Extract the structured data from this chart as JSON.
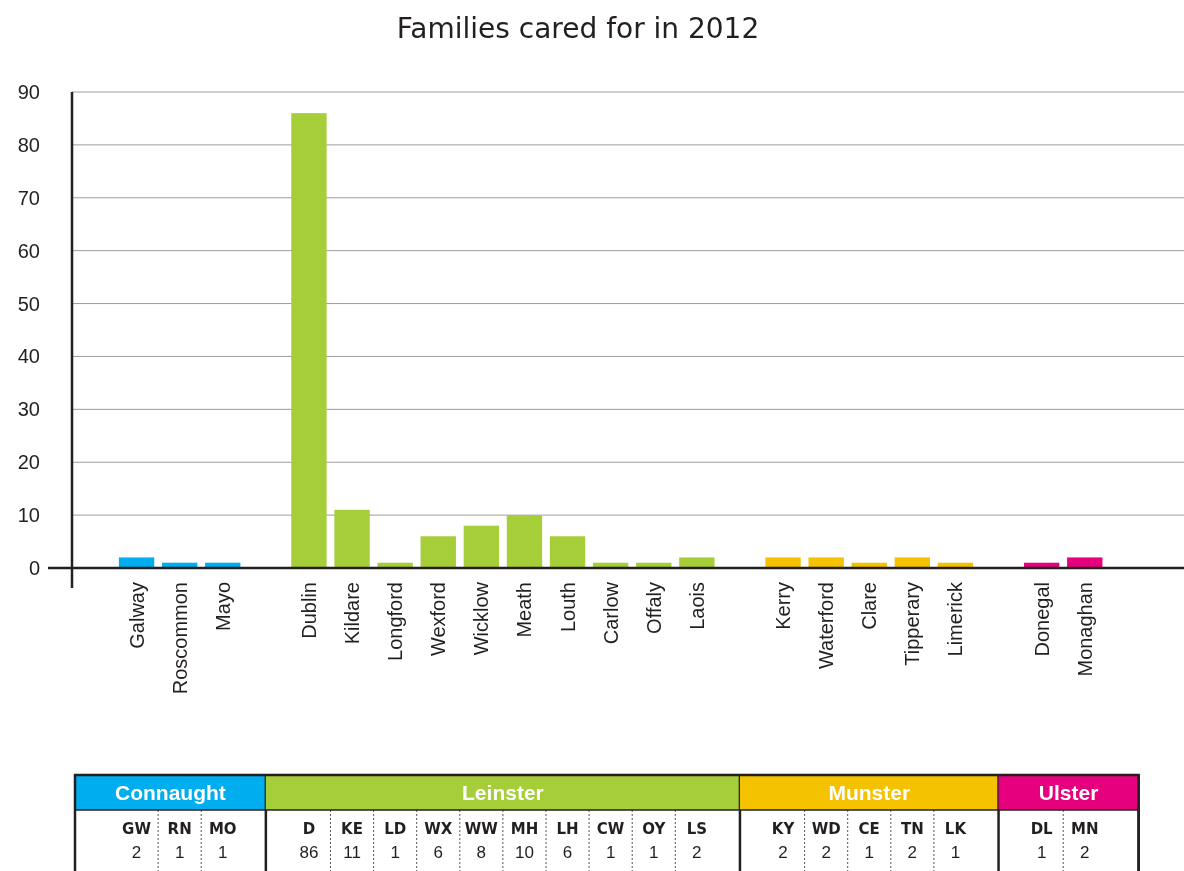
{
  "chart_data": {
    "type": "bar",
    "title": "Families cared for in 2012",
    "categories": [
      "Galway",
      "Roscommon",
      "Mayo",
      null,
      "Dublin",
      "Kildare",
      "Longford",
      "Wexford",
      "Wicklow",
      "Meath",
      "Louth",
      "Carlow",
      "Offaly",
      "Laois",
      null,
      "Kerry",
      "Waterford",
      "Clare",
      "Tipperary",
      "Limerick",
      null,
      "Donegal",
      "Monaghan"
    ],
    "series": [
      {
        "name": "Connaught",
        "color": "#00aeef",
        "values": [
          2,
          1,
          1,
          null,
          null,
          null,
          null,
          null,
          null,
          null,
          null,
          null,
          null,
          null,
          null,
          null,
          null,
          null,
          null,
          null,
          null,
          null,
          null
        ]
      },
      {
        "name": "Leinster",
        "color": "#a6ce39",
        "values": [
          null,
          null,
          null,
          null,
          86,
          11,
          1,
          6,
          8,
          10,
          6,
          1,
          1,
          2,
          null,
          null,
          null,
          null,
          null,
          null,
          null,
          null,
          null
        ]
      },
      {
        "name": "Munster",
        "color": "#f5c200",
        "values": [
          null,
          null,
          null,
          null,
          null,
          null,
          null,
          null,
          null,
          null,
          null,
          null,
          null,
          null,
          null,
          2,
          2,
          1,
          2,
          1,
          null,
          null,
          null
        ]
      },
      {
        "name": "Ulster",
        "color": "#e6007e",
        "values": [
          null,
          null,
          null,
          null,
          null,
          null,
          null,
          null,
          null,
          null,
          null,
          null,
          null,
          null,
          null,
          null,
          null,
          null,
          null,
          null,
          null,
          1,
          2
        ]
      }
    ],
    "ylim": [
      0,
      90
    ],
    "yticks": [
      0,
      10,
      20,
      30,
      40,
      50,
      60,
      70,
      80,
      90
    ],
    "grid": "y",
    "legend": "bottom",
    "annotations": [
      "GW RN MO",
      "2 1 1",
      "D KE LD WX WW MH LH CW OY LS",
      "86 11 1 6 8 10 6 1 1 2",
      "KY WD CE TN LK",
      "2 2 1 2 1",
      "DL MN",
      "1 2"
    ]
  }
}
